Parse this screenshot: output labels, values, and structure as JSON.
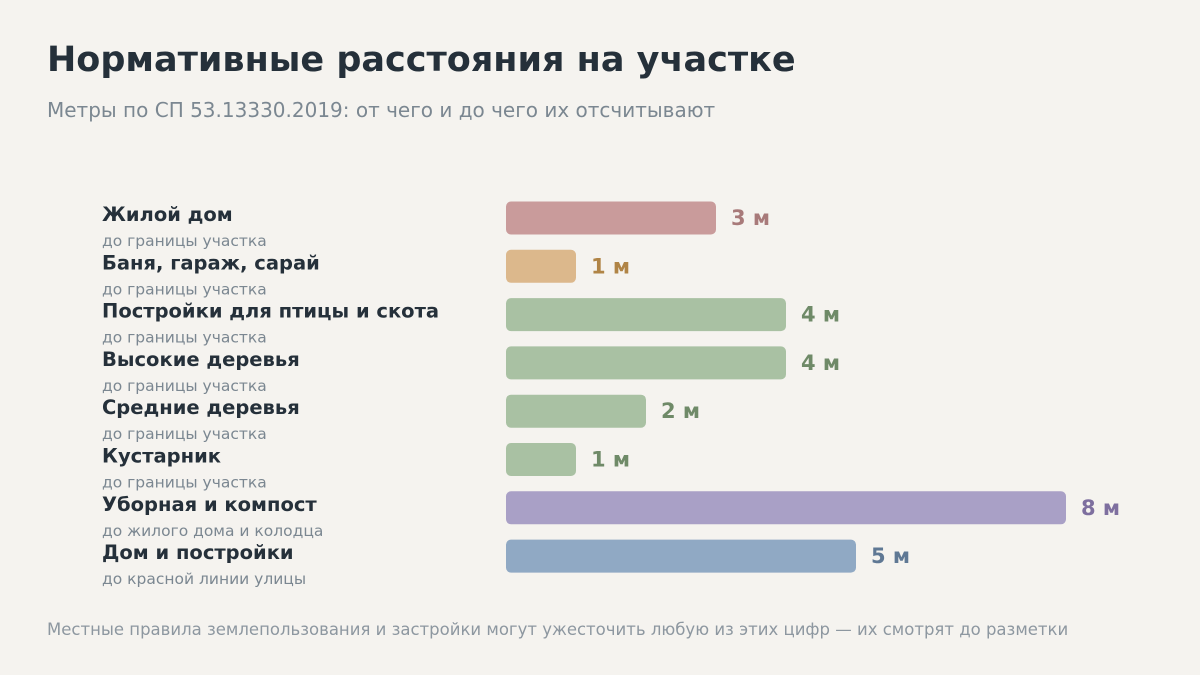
{
  "header": {
    "title": "Нормативные расстояния на участке",
    "subtitle": "Метры по СП 53.13330.2019: от чего и до чего их отсчитывают"
  },
  "footnote": "Местные правила землепользования и застройки могут ужесточить любую из этих цифр — их смотрят до разметки",
  "chart_data": {
    "type": "bar",
    "orientation": "horizontal",
    "unit": "м",
    "xlim": [
      0,
      8
    ],
    "grid": false,
    "legend": "none",
    "categories": [
      "Жилой дом",
      "Баня, гараж, сарай",
      "Постройки для птицы и скота",
      "Высокие деревья",
      "Средние деревья",
      "Кустарник",
      "Уборная и компост",
      "Дом и постройки"
    ],
    "sublabels": [
      "до границы участка",
      "до границы участка",
      "до границы участка",
      "до границы участка",
      "до границы участка",
      "до границы участка",
      "до жилого дома и колодца",
      "до красной линии улицы"
    ],
    "values": [
      3,
      1,
      4,
      4,
      2,
      1,
      8,
      5
    ],
    "value_labels": [
      "3 м",
      "1 м",
      "4 м",
      "4 м",
      "2 м",
      "1 м",
      "8 м",
      "5 м"
    ],
    "bar_colors": [
      "#c99b9b",
      "#dcb88c",
      "#a9c1a3",
      "#a9c1a3",
      "#a9c1a3",
      "#a9c1a3",
      "#a9a0c6",
      "#90a9c4"
    ],
    "label_colors": [
      "#a87a7a",
      "#b08446",
      "#6f8a68",
      "#6f8a68",
      "#6f8a68",
      "#6f8a68",
      "#7e6f9f",
      "#5f7894"
    ]
  }
}
